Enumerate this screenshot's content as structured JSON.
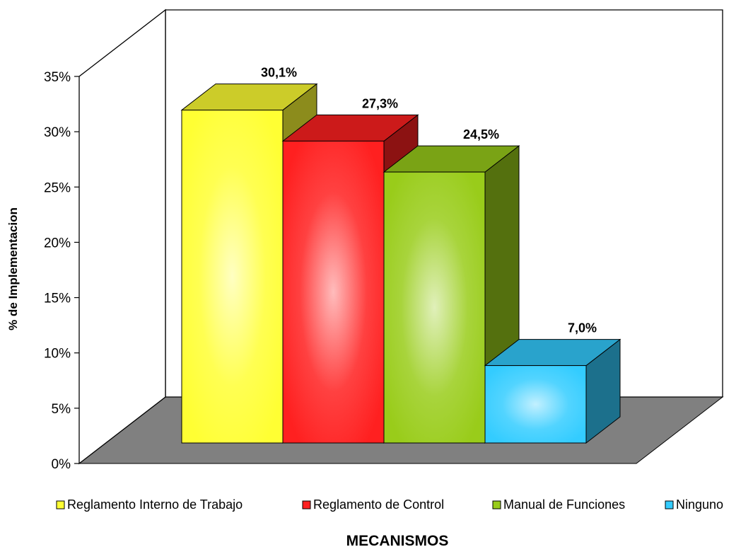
{
  "chart_data": {
    "type": "bar",
    "categories": [
      "Reglamento Interno de Trabajo",
      "Reglamento de Control",
      "Manual de Funciones",
      "Ninguno"
    ],
    "values": [
      30.1,
      27.3,
      24.5,
      7.0
    ],
    "data_labels": [
      "30,1%",
      "27,3%",
      "24,5%",
      "7,0%"
    ],
    "ylabel": "% de Implementacion",
    "xlabel": "MECANISMOS",
    "ylim": [
      0,
      35
    ],
    "yticks": [
      0,
      5,
      10,
      15,
      20,
      25,
      30,
      35
    ],
    "ytick_labels": [
      "0%",
      "5%",
      "10%",
      "15%",
      "20%",
      "25%",
      "30%",
      "35%"
    ],
    "legend_placement": "bottom",
    "grid": false,
    "three_d": true,
    "colors": [
      "#ffff33",
      "#ff2020",
      "#99cc1a",
      "#33ccff"
    ],
    "floor_color": "#808080"
  }
}
